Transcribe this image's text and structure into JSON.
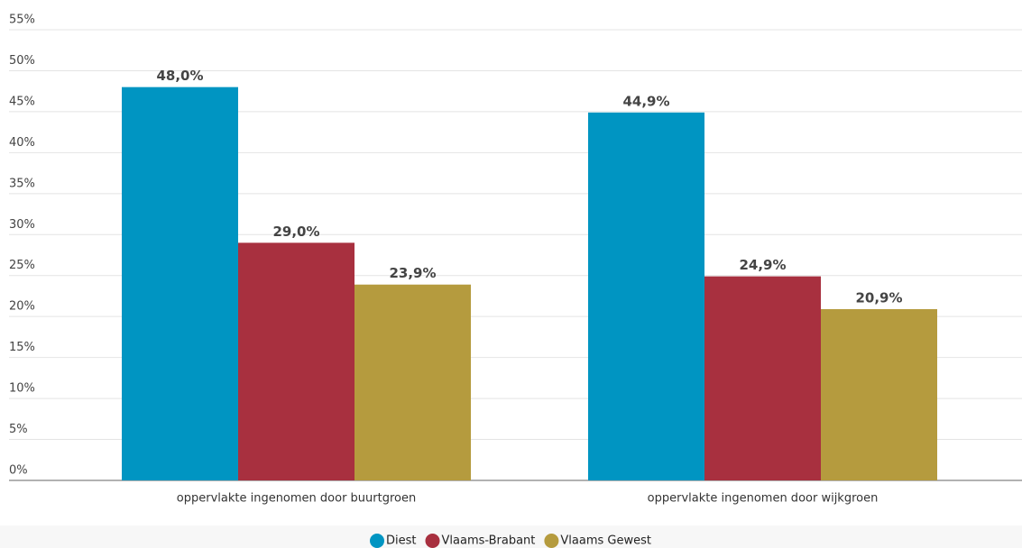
{
  "chart_data": {
    "type": "bar",
    "categories": [
      "oppervlakte ingenomen door buurtgroen",
      "oppervlakte ingenomen door wijkgroen"
    ],
    "series": [
      {
        "name": "Diest",
        "color": "#0095c2",
        "values": [
          48.0,
          44.9
        ],
        "value_labels": [
          "48,0%",
          "44,9%"
        ]
      },
      {
        "name": "Vlaams-Brabant",
        "color": "#a8303f",
        "values": [
          29.0,
          24.9
        ],
        "value_labels": [
          "29,0%",
          "24,9%"
        ]
      },
      {
        "name": "Vlaams Gewest",
        "color": "#b59b3e",
        "values": [
          23.9,
          20.9
        ],
        "value_labels": [
          "23,9%",
          "20,9%"
        ]
      }
    ],
    "ylim": [
      0,
      55
    ],
    "yticks": [
      {
        "value": 0,
        "label": "0%"
      },
      {
        "value": 5,
        "label": "5%"
      },
      {
        "value": 10,
        "label": "10%"
      },
      {
        "value": 15,
        "label": "15%"
      },
      {
        "value": 20,
        "label": "20%"
      },
      {
        "value": 25,
        "label": "25%"
      },
      {
        "value": 30,
        "label": "30%"
      },
      {
        "value": 35,
        "label": "35%"
      },
      {
        "value": 40,
        "label": "40%"
      },
      {
        "value": 45,
        "label": "45%"
      },
      {
        "value": 50,
        "label": "50%"
      },
      {
        "value": 55,
        "label": "55%"
      }
    ],
    "grid": true,
    "legend": "bottom"
  }
}
